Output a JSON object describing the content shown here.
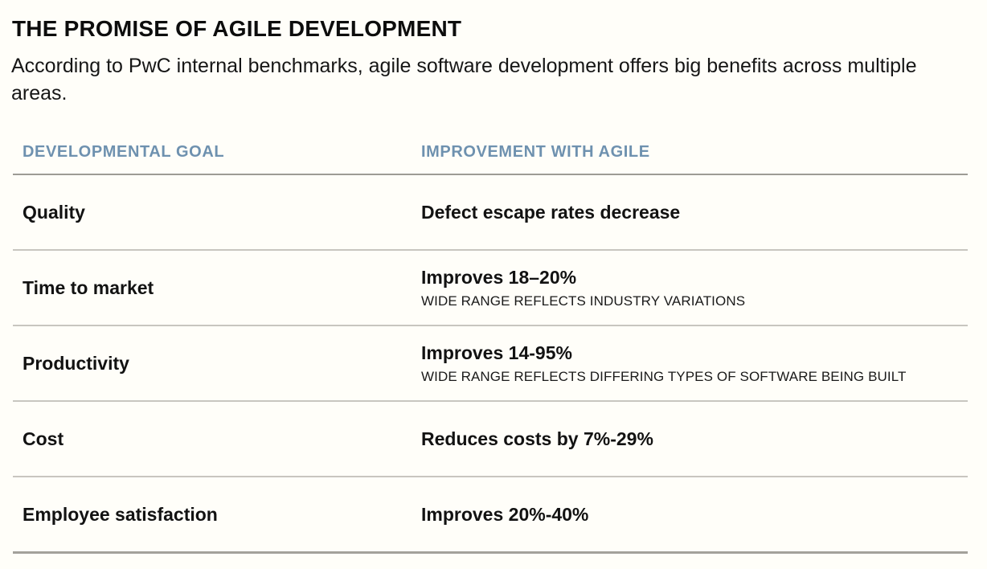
{
  "colors": {
    "background": "#fffef9",
    "header_blue": "#6e91af",
    "divider_dark": "#9d9b95",
    "divider_light": "#c8c6c0",
    "text": "#121212"
  },
  "chart_data": {
    "type": "table",
    "title": "THE PROMISE OF AGILE DEVELOPMENT",
    "subtitle": "According to PwC internal benchmarks, agile software development offers big benefits across multiple areas.",
    "columns": [
      "DEVELOPMENTAL GOAL",
      "IMPROVEMENT WITH AGILE"
    ],
    "rows": [
      {
        "goal": "Quality",
        "improvement": "Defect escape rates decrease",
        "note": ""
      },
      {
        "goal": "Time to market",
        "improvement": "Improves 18–20%",
        "note": "WIDE RANGE REFLECTS INDUSTRY VARIATIONS"
      },
      {
        "goal": "Productivity",
        "improvement": "Improves 14-95%",
        "note": "WIDE RANGE REFLECTS DIFFERING TYPES OF SOFTWARE BEING BUILT"
      },
      {
        "goal": "Cost",
        "improvement": "Reduces costs by 7%-29%",
        "note": ""
      },
      {
        "goal": "Employee satisfaction",
        "improvement": "Improves 20%-40%",
        "note": ""
      }
    ]
  }
}
